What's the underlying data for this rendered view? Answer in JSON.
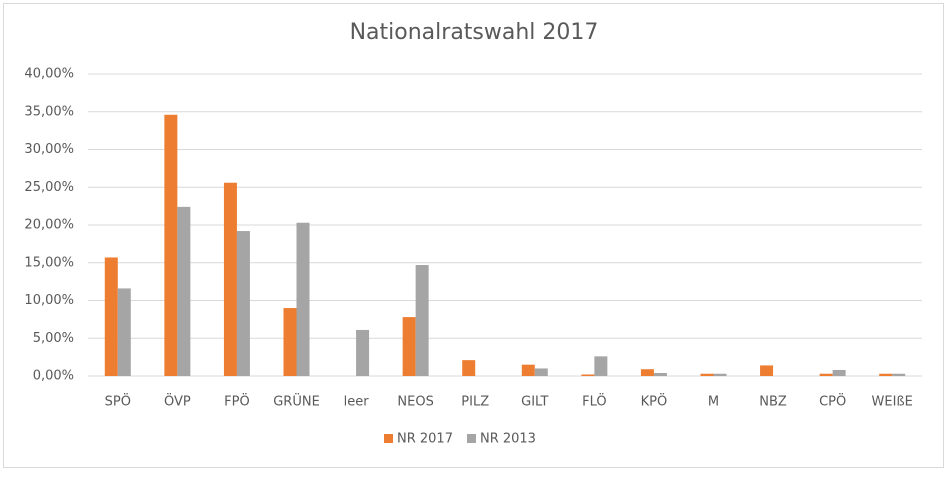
{
  "chart_data": {
    "type": "bar",
    "title": "Nationalratswahl 2017",
    "categories": [
      "SPÖ",
      "ÖVP",
      "FPÖ",
      "GRÜNE",
      "leer",
      "NEOS",
      "PILZ",
      "GILT",
      "FLÖ",
      "KPÖ",
      "M",
      "NBZ",
      "CPÖ",
      "WEIßE"
    ],
    "series": [
      {
        "name": "NR 2017",
        "color": "#ed7d31",
        "values": [
          15.7,
          34.6,
          25.6,
          9.0,
          0,
          7.8,
          2.1,
          1.5,
          0.2,
          0.9,
          0.3,
          1.4,
          0.3,
          0.3
        ]
      },
      {
        "name": "NR 2013",
        "color": "#a5a5a5",
        "values": [
          11.6,
          22.4,
          19.2,
          20.3,
          6.1,
          14.7,
          0,
          1.0,
          2.6,
          0.4,
          0.3,
          0,
          0.8,
          0.3
        ]
      }
    ],
    "ylim": [
      0,
      40
    ],
    "yticks": [
      {
        "value": 0,
        "label": "0,00%"
      },
      {
        "value": 5,
        "label": "5,00%"
      },
      {
        "value": 10,
        "label": "10,00%"
      },
      {
        "value": 15,
        "label": "15,00%"
      },
      {
        "value": 20,
        "label": "20,00%"
      },
      {
        "value": 25,
        "label": "25,00%"
      },
      {
        "value": 30,
        "label": "30,00%"
      },
      {
        "value": 35,
        "label": "35,00%"
      },
      {
        "value": 40,
        "label": "40,00%"
      }
    ],
    "grid": true,
    "legend": "bottom"
  }
}
